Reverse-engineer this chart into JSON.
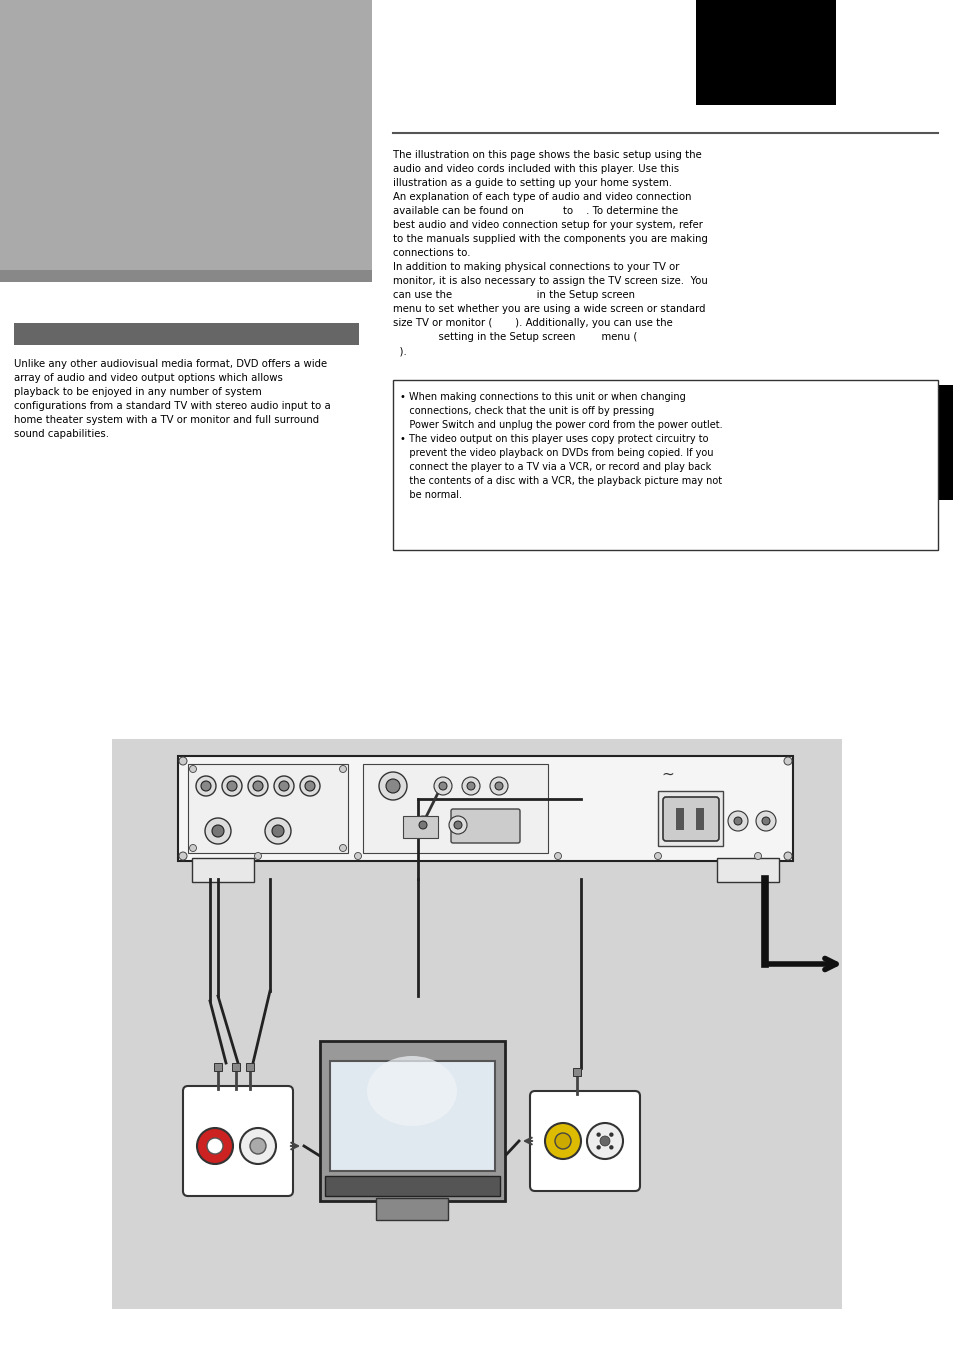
{
  "bg_color": "#ffffff",
  "left_panel_bg": "#aaaaaa",
  "dark_bar_color": "#888888",
  "small_header_color": "#666666",
  "black_box_color": "#000000",
  "diagram_bg": "#d4d4d4",
  "page_width": 9.54,
  "page_height": 13.51,
  "left_text": "Unlike any other audiovisual media format, DVD offers a wide\narray of audio and video output options which allows\nplayback to be enjoyed in any number of system\nconfigurations from a standard TV with stereo audio input to a\nhome theater system with a TV or monitor and full surround\nsound capabilities.",
  "right_para1": "The illustration on this page shows the basic setup using the\naudio and video cords included with this player. Use this\nillustration as a guide to setting up your home system.\nAn explanation of each type of audio and video connection\navailable can be found on            to    . To determine the\nbest audio and video connection setup for your system, refer\nto the manuals supplied with the components you are making\nconnections to.\nIn addition to making physical connections to your TV or\nmonitor, it is also necessary to assign the TV screen size.  You\ncan use the                          in the Setup screen\nmenu to set whether you are using a wide screen or standard\nsize TV or monitor (       ). Additionally, you can use the\n              setting in the Setup screen        menu (\n  ).",
  "note_line1": "• When making connections to this unit or when changing",
  "note_line2": "   connections, check that the unit is off by pressing",
  "note_line3": "   Power Switch and unplug the power cord from the power outlet.",
  "note_line4": "• The video output on this player uses copy protect circuitry to",
  "note_line5": "   prevent the video playback on DVDs from being copied. If you",
  "note_line6": "   connect the player to a TV via a VCR, or record and play back",
  "note_line7": "   the contents of a disc with a VCR, the playback picture may not",
  "note_line8": "   be normal."
}
